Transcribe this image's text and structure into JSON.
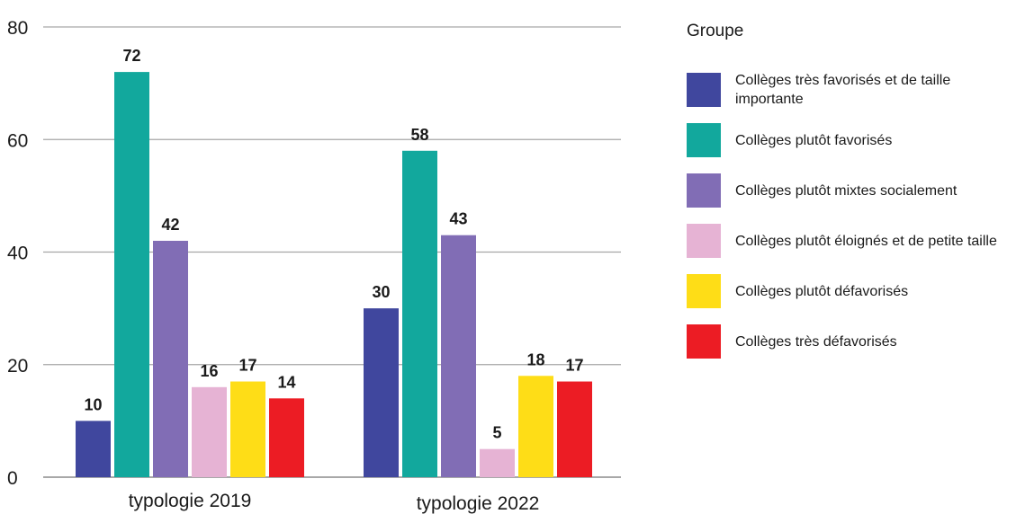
{
  "chart_data": {
    "type": "bar",
    "categories": [
      "typologie 2019",
      "typologie 2022"
    ],
    "series": [
      {
        "name": "Collèges très favorisés et de taille importante",
        "color": "#40479e",
        "values": [
          10,
          30
        ]
      },
      {
        "name": "Collèges plutôt favorisés",
        "color": "#12a89d",
        "values": [
          72,
          58
        ]
      },
      {
        "name": "Collèges plutôt mixtes socialement",
        "color": "#816db5",
        "values": [
          42,
          43
        ]
      },
      {
        "name": "Collèges plutôt éloignés et de petite taille",
        "color": "#e6b3d4",
        "values": [
          16,
          5
        ]
      },
      {
        "name": "Collèges plutôt défavorisés",
        "color": "#fedd17",
        "values": [
          17,
          18
        ]
      },
      {
        "name": "Collèges très défavorisés",
        "color": "#ec1c24",
        "values": [
          14,
          17
        ]
      }
    ],
    "ylim": [
      0,
      80
    ],
    "yticks": [
      0,
      20,
      40,
      60,
      80
    ],
    "grid": true,
    "legend_title": "Groupe",
    "legend_position": "right",
    "title": "",
    "xlabel": "",
    "ylabel": ""
  }
}
